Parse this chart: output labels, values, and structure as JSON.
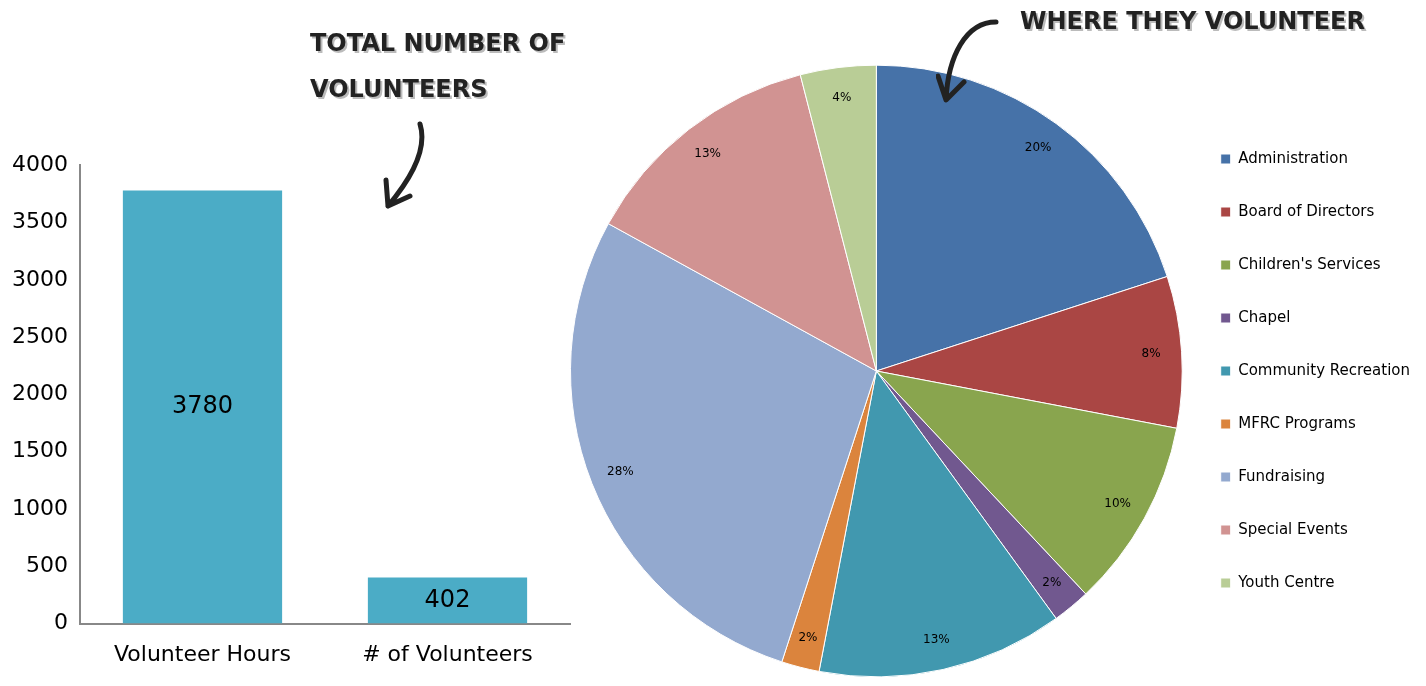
{
  "chart_data": [
    {
      "type": "bar",
      "title": "TOTAL NUMBER OF VOLUNTEERS",
      "categories": [
        "Volunteer Hours",
        "# of Volunteers"
      ],
      "values": [
        3780,
        402
      ],
      "color": "#4bacc6",
      "ylim": [
        0,
        4000
      ],
      "yticks": [
        0,
        500,
        1000,
        1500,
        2000,
        2500,
        3000,
        3500,
        4000
      ],
      "grid": false,
      "legend": false,
      "data_labels": true
    },
    {
      "type": "pie",
      "title": "WHERE THEY VOLUNTEER",
      "categories": [
        "Administration",
        "Board of Directors",
        "Children's Services",
        "Chapel",
        "Community Recreation",
        "MFRC Programs",
        "Fundraising",
        "Special Events",
        "Youth Centre"
      ],
      "values": [
        20,
        8,
        10,
        2,
        13,
        2,
        28,
        13,
        4
      ],
      "value_labels": [
        "20%",
        "8%",
        "10%",
        "2%",
        "13%",
        "2%",
        "28%",
        "13%",
        "4%"
      ],
      "colors": [
        "#4672a8",
        "#aa4644",
        "#89a54e",
        "#71588f",
        "#4198af",
        "#db843d",
        "#93a9cf",
        "#d19392",
        "#b9cd96"
      ],
      "legend": "right"
    }
  ]
}
